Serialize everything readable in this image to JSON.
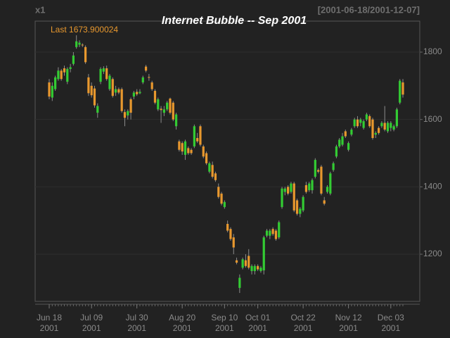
{
  "chart_data": {
    "type": "candlestick",
    "title": "Internet Bubble -- Sep 2001",
    "series_name": "x1",
    "date_range": "[2001-06-18/2001-12-07]",
    "last_label": "Last 1673.900024",
    "up_color": "#33cc33",
    "down_color": "#e8982e",
    "wick_color": "#8c8c8c",
    "grid": true,
    "ylim": [
      1060,
      1892
    ],
    "yticks": [
      1200,
      1400,
      1600,
      1800
    ],
    "categories": [
      "Jun 18\n2001",
      null,
      null,
      null,
      null,
      null,
      null,
      null,
      null,
      null,
      null,
      null,
      null,
      null,
      "Jul 09\n2001",
      null,
      null,
      null,
      null,
      null,
      null,
      null,
      null,
      null,
      null,
      null,
      null,
      null,
      null,
      "Jul 30\n2001",
      null,
      null,
      null,
      null,
      null,
      null,
      null,
      null,
      null,
      null,
      null,
      null,
      null,
      null,
      "Aug 20\n2001",
      null,
      null,
      null,
      null,
      null,
      null,
      null,
      null,
      null,
      null,
      null,
      null,
      null,
      "Sep 10\n2001",
      null,
      null,
      null,
      null,
      null,
      null,
      null,
      null,
      null,
      null,
      "Oct 01\n2001",
      null,
      null,
      null,
      null,
      null,
      null,
      null,
      null,
      null,
      null,
      null,
      null,
      null,
      null,
      "Oct 22\n2001",
      null,
      null,
      null,
      null,
      null,
      null,
      null,
      null,
      null,
      null,
      null,
      null,
      null,
      null,
      "Nov 12\n2001",
      null,
      null,
      null,
      null,
      null,
      null,
      null,
      null,
      null,
      null,
      null,
      null,
      null,
      "Dec 03\n2001",
      null,
      null,
      null,
      null
    ],
    "open": [
      1710,
      1665,
      1690,
      1720,
      1745,
      1752,
      1712,
      1750,
      1765,
      1815,
      1822,
      1822,
      1815,
      1725,
      1700,
      1692,
      1620,
      1712,
      1742,
      1752,
      1690,
      1720,
      1680,
      1690,
      1690,
      1622,
      1612,
      1660,
      1668,
      1682,
      1678,
      1710,
      1757,
      1726,
      1710,
      1685,
      1630,
      1632,
      1620,
      1630,
      1662,
      1650,
      1580,
      1535,
      1530,
      1495,
      1515,
      1510,
      1520,
      1545,
      1580,
      1520,
      1500,
      1445,
      1465,
      1440,
      1400,
      1380,
      1340,
      1290,
      1275,
      1250,
      1182,
      1100,
      1160,
      1182,
      1195,
      1150,
      1150,
      1165,
      1150,
      1152,
      1255,
      1255,
      1275,
      1270,
      1250,
      1340,
      1385,
      1400,
      1385,
      1410,
      1360,
      1320,
      1330,
      1405,
      1390,
      1390,
      1430,
      1450,
      1460,
      1360,
      1385,
      1380,
      1450,
      1490,
      1520,
      1525,
      1565,
      1510,
      1555,
      1580,
      1600,
      1590,
      1575,
      1600,
      1610,
      1600,
      1555,
      1575,
      1580,
      1590,
      1565,
      1575,
      1570,
      1580,
      1650,
      1710
    ],
    "high": [
      1720,
      1710,
      1730,
      1755,
      1750,
      1760,
      1755,
      1765,
      1800,
      1850,
      1835,
      1826,
      1820,
      1735,
      1710,
      1700,
      1648,
      1755,
      1758,
      1760,
      1735,
      1725,
      1700,
      1695,
      1695,
      1630,
      1630,
      1665,
      1685,
      1690,
      1690,
      1730,
      1762,
      1735,
      1715,
      1690,
      1665,
      1640,
      1640,
      1655,
      1665,
      1655,
      1620,
      1540,
      1535,
      1540,
      1520,
      1515,
      1585,
      1560,
      1585,
      1525,
      1505,
      1475,
      1475,
      1445,
      1410,
      1385,
      1360,
      1300,
      1280,
      1260,
      1190,
      1140,
      1190,
      1200,
      1215,
      1170,
      1170,
      1170,
      1165,
      1255,
      1275,
      1275,
      1280,
      1275,
      1300,
      1400,
      1400,
      1405,
      1415,
      1415,
      1365,
      1340,
      1375,
      1415,
      1415,
      1425,
      1485,
      1455,
      1465,
      1370,
      1405,
      1445,
      1475,
      1525,
      1545,
      1560,
      1570,
      1535,
      1575,
      1605,
      1610,
      1605,
      1600,
      1620,
      1615,
      1605,
      1565,
      1580,
      1595,
      1640,
      1595,
      1595,
      1585,
      1635,
      1720,
      1720
    ],
    "low": [
      1660,
      1655,
      1685,
      1715,
      1715,
      1730,
      1705,
      1740,
      1760,
      1810,
      1815,
      1815,
      1765,
      1670,
      1665,
      1635,
      1605,
      1705,
      1735,
      1715,
      1685,
      1665,
      1670,
      1675,
      1620,
      1580,
      1600,
      1600,
      1660,
      1670,
      1675,
      1705,
      1740,
      1715,
      1685,
      1645,
      1625,
      1590,
      1610,
      1625,
      1615,
      1595,
      1570,
      1505,
      1495,
      1480,
      1495,
      1495,
      1515,
      1530,
      1520,
      1485,
      1465,
      1440,
      1425,
      1415,
      1365,
      1345,
      1335,
      1265,
      1240,
      1200,
      1170,
      1085,
      1155,
      1160,
      1155,
      1140,
      1140,
      1150,
      1145,
      1140,
      1250,
      1245,
      1255,
      1240,
      1245,
      1335,
      1375,
      1375,
      1380,
      1325,
      1315,
      1310,
      1325,
      1380,
      1385,
      1380,
      1425,
      1440,
      1375,
      1345,
      1380,
      1375,
      1445,
      1485,
      1515,
      1520,
      1545,
      1505,
      1550,
      1575,
      1575,
      1580,
      1570,
      1595,
      1575,
      1540,
      1545,
      1555,
      1575,
      1565,
      1560,
      1565,
      1565,
      1575,
      1645,
      1665
    ],
    "close": [
      1668,
      1700,
      1725,
      1745,
      1720,
      1740,
      1750,
      1755,
      1790,
      1832,
      1828,
      1820,
      1770,
      1678,
      1672,
      1642,
      1640,
      1750,
      1752,
      1720,
      1730,
      1670,
      1690,
      1680,
      1625,
      1605,
      1625,
      1620,
      1680,
      1675,
      1682,
      1725,
      1745,
      1724,
      1690,
      1650,
      1660,
      1628,
      1630,
      1650,
      1620,
      1600,
      1615,
      1510,
      1505,
      1535,
      1500,
      1500,
      1580,
      1535,
      1525,
      1490,
      1470,
      1470,
      1430,
      1420,
      1370,
      1350,
      1355,
      1270,
      1245,
      1220,
      1175,
      1130,
      1185,
      1165,
      1160,
      1165,
      1165,
      1155,
      1160,
      1250,
      1270,
      1270,
      1260,
      1245,
      1295,
      1395,
      1395,
      1380,
      1410,
      1330,
      1320,
      1335,
      1370,
      1385,
      1410,
      1420,
      1480,
      1445,
      1380,
      1350,
      1400,
      1440,
      1470,
      1520,
      1540,
      1550,
      1550,
      1530,
      1570,
      1600,
      1580,
      1600,
      1595,
      1615,
      1580,
      1545,
      1560,
      1560,
      1590,
      1570,
      1590,
      1590,
      1580,
      1630,
      1715,
      1673.900024
    ]
  }
}
